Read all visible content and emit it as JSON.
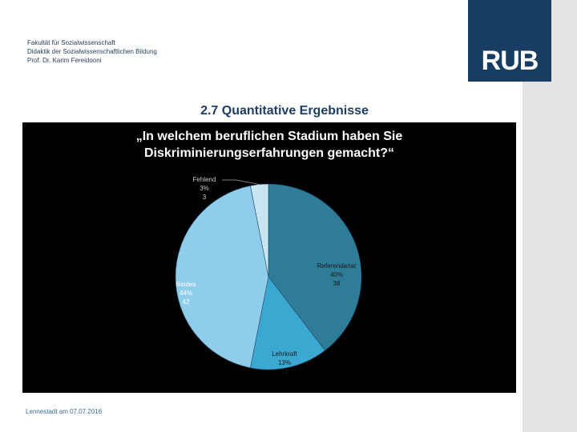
{
  "header": {
    "lines": [
      "Fakultät für Sozialwissenschaft",
      "Didaktik der Sozialwissenschaftlichen Bildung",
      "Prof. Dr. Karim Fereidooni"
    ],
    "logo": "RUB"
  },
  "slide_title": "2.7 Quantitative Ergebnisse",
  "footer": "Lennestadt am 07.07.2016",
  "chart_data": {
    "type": "pie",
    "title": "„In welchem beruflichen Stadium haben Sie Diskriminierungserfahrungen gemacht?“",
    "categories": [
      "Referendariat",
      "Lehrkraft",
      "Beides",
      "Fehlend"
    ],
    "values": [
      38,
      13,
      42,
      3
    ],
    "percent_labels": [
      "40%",
      "13%",
      "44%",
      "3%"
    ],
    "colors": [
      "#2f7c98",
      "#3ba8d2",
      "#8fcdea",
      "#c9e5f1"
    ]
  }
}
